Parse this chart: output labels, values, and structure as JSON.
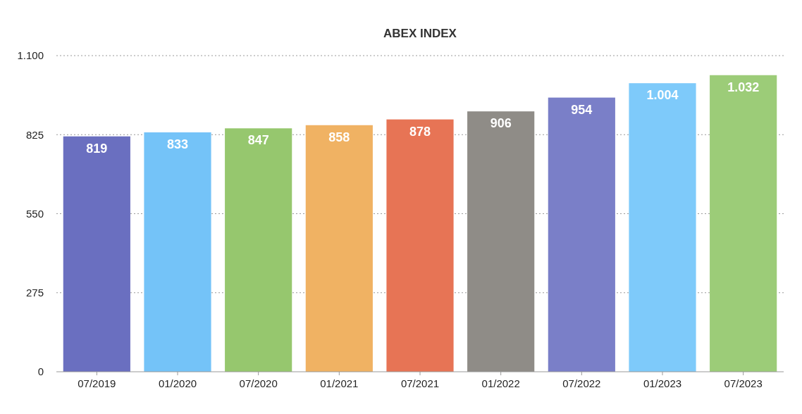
{
  "chart_data": {
    "type": "bar",
    "title": "ABEX INDEX",
    "categories": [
      "07/2019",
      "01/2020",
      "07/2020",
      "01/2021",
      "07/2021",
      "01/2022",
      "07/2022",
      "01/2023",
      "07/2023"
    ],
    "values": [
      819,
      833,
      847,
      858,
      878,
      906,
      954,
      1004,
      1032
    ],
    "value_labels": [
      "819",
      "833",
      "847",
      "858",
      "878",
      "906",
      "954",
      "1.004",
      "1.032"
    ],
    "colors": [
      "#6a6fc0",
      "#74c3f8",
      "#96c76e",
      "#f0b263",
      "#e77455",
      "#8f8c87",
      "#7a7fc8",
      "#7ecafa",
      "#9ccc78"
    ],
    "ylim": [
      0,
      1100
    ],
    "yticks": [
      0,
      275,
      550,
      825,
      {
        "value": 1100,
        "label": "1.100"
      }
    ],
    "grid": "y"
  }
}
